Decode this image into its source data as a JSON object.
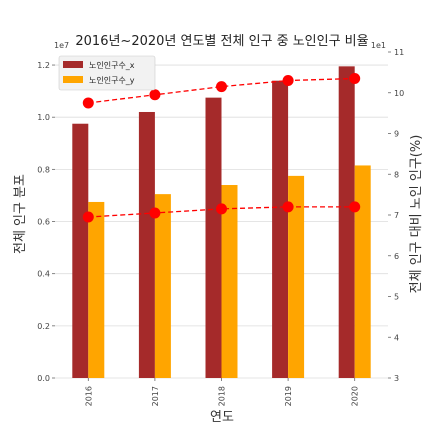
{
  "chart_data": {
    "type": "bar",
    "title": "2016년~2020년 연도별 전체 인구 중 노인인구 비율",
    "xlabel": "연도",
    "ylabel_left": "전체 인구 분포",
    "ylabel_right": "전체 인구 대비 노인 인구(%)",
    "left_scale_text": "1e7",
    "right_scale_text": "1e1",
    "categories": [
      "2016",
      "2017",
      "2018",
      "2019",
      "2020"
    ],
    "ylim_left": [
      0,
      1.25
    ],
    "ylim_right": [
      3,
      11
    ],
    "yticks_left": [
      "0.0",
      "0.2",
      "0.4",
      "0.6",
      "0.8",
      "1.0",
      "1.2"
    ],
    "yticks_right": [
      "3",
      "4",
      "5",
      "6",
      "7",
      "8",
      "9",
      "10",
      "11"
    ],
    "legend_position": "top-left",
    "grid": "horizontal",
    "series": [
      {
        "name": "노인인구수_x",
        "kind": "bar",
        "axis": "left",
        "color": "#a52a2a",
        "values": [
          0.975,
          1.02,
          1.075,
          1.14,
          1.195
        ]
      },
      {
        "name": "노인인구수_y",
        "kind": "bar",
        "axis": "left",
        "color": "#ffa500",
        "values": [
          0.675,
          0.705,
          0.74,
          0.775,
          0.815
        ]
      },
      {
        "kind": "line",
        "axis": "right",
        "color": "#ff0000",
        "values": [
          9.75,
          9.95,
          10.15,
          10.3,
          10.35
        ]
      },
      {
        "kind": "line",
        "axis": "right",
        "color": "#ff0000",
        "values": [
          6.95,
          7.05,
          7.15,
          7.2,
          7.2
        ]
      }
    ]
  }
}
